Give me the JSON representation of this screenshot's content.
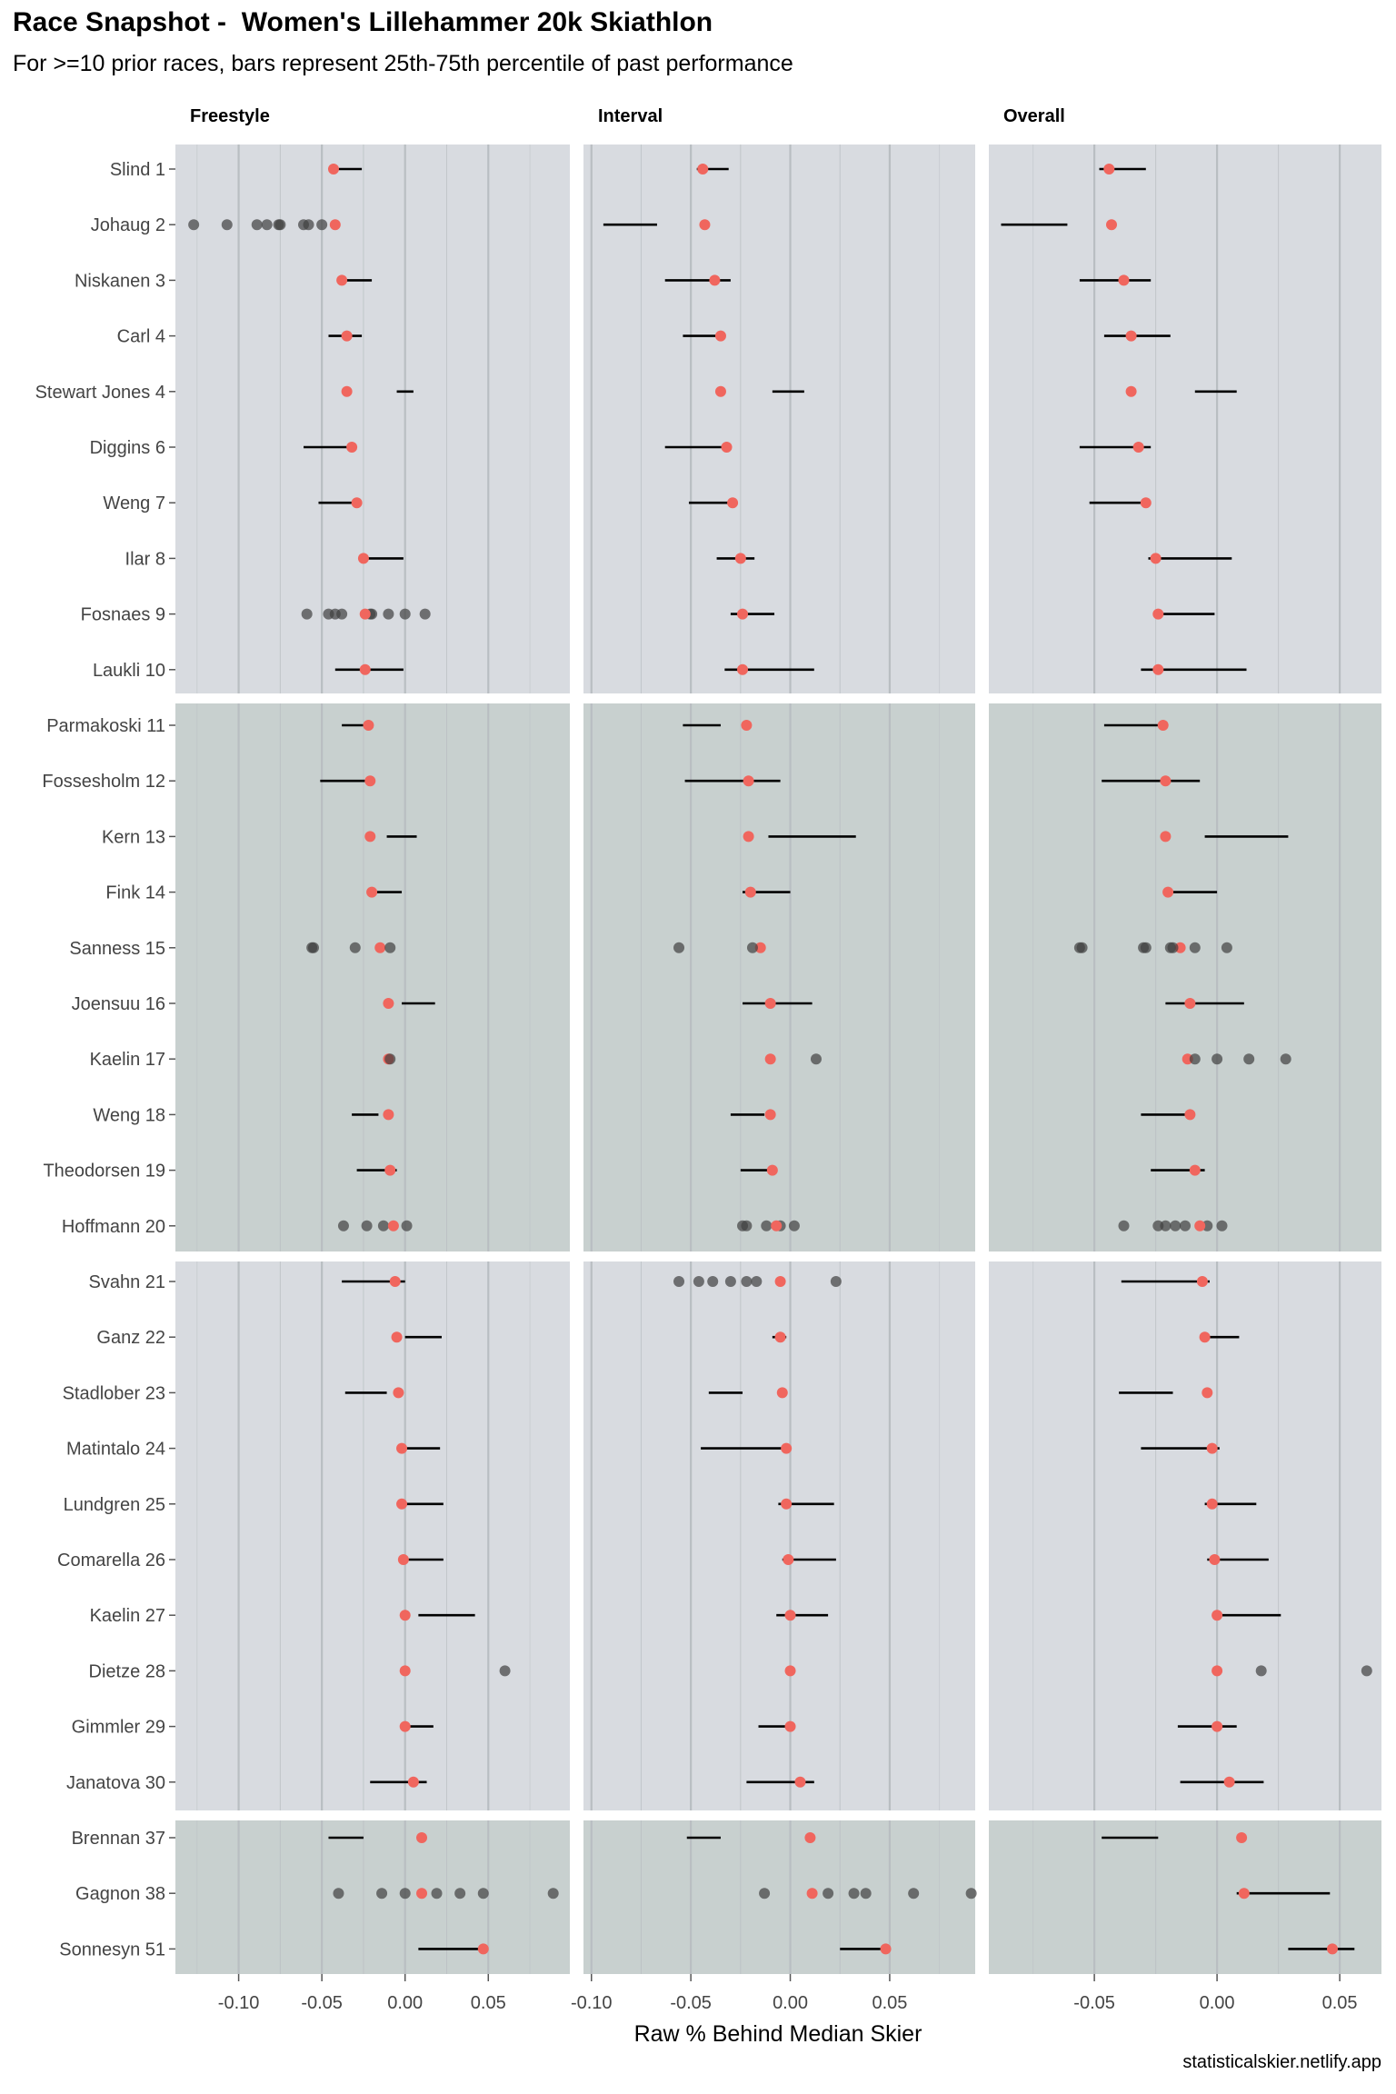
{
  "title": "Race Snapshot -  Women's Lillehammer 20k Skiathlon",
  "subtitle": "For >=10 prior races, bars represent 25th-75th percentile of past performance",
  "caption": "statisticalskier.netlify.app",
  "colors": {
    "panel_light": "#d8dbe0",
    "panel_dark": "#c8d0cf",
    "current_point": "#f0665e",
    "past_point": "#404040",
    "bar": "#000000",
    "grid": "#b9bec2"
  },
  "chart_data": {
    "type": "scatter",
    "xlabel": "Raw % Behind Median Skier",
    "facets": [
      {
        "name": "Freestyle",
        "xlim": [
          -0.138,
          0.099
        ],
        "ticks": [
          -0.1,
          -0.05,
          0.0,
          0.05
        ],
        "tick_labels": [
          "-0.10",
          "-0.05",
          "0.00",
          "0.05"
        ]
      },
      {
        "name": "Interval",
        "xlim": [
          -0.104,
          0.093
        ],
        "ticks": [
          -0.1,
          -0.05,
          0.0,
          0.05
        ],
        "tick_labels": [
          "-0.10",
          "-0.05",
          "0.00",
          "0.05"
        ]
      },
      {
        "name": "Overall",
        "xlim": [
          -0.093,
          0.067
        ],
        "ticks": [
          -0.05,
          0.0,
          0.05
        ],
        "tick_labels": [
          "-0.05",
          "0.00",
          "0.05"
        ]
      }
    ],
    "groups": [
      {
        "shade": "light",
        "rows": [
          0,
          9
        ]
      },
      {
        "shade": "dark",
        "rows": [
          10,
          19
        ]
      },
      {
        "shade": "light",
        "rows": [
          20,
          29
        ]
      },
      {
        "shade": "dark",
        "rows": [
          30,
          32
        ]
      }
    ],
    "skiers": [
      {
        "label": "Slind 1",
        "freestyle": {
          "current": -0.043,
          "bar": [
            -0.044,
            -0.026
          ],
          "past": []
        },
        "interval": {
          "current": -0.044,
          "bar": [
            -0.047,
            -0.031
          ],
          "past": []
        },
        "overall": {
          "current": -0.044,
          "bar": [
            -0.048,
            -0.029
          ],
          "past": []
        }
      },
      {
        "label": "Johaug 2",
        "freestyle": {
          "current": -0.042,
          "bar": null,
          "past": [
            -0.127,
            -0.107,
            -0.089,
            -0.083,
            -0.076,
            -0.075,
            -0.061,
            -0.058,
            -0.05
          ]
        },
        "interval": {
          "current": -0.043,
          "bar": [
            -0.094,
            -0.067
          ],
          "past": []
        },
        "overall": {
          "current": -0.043,
          "bar": [
            -0.088,
            -0.061
          ],
          "past": []
        }
      },
      {
        "label": "Niskanen 3",
        "freestyle": {
          "current": -0.038,
          "bar": [
            -0.04,
            -0.02
          ],
          "past": []
        },
        "interval": {
          "current": -0.038,
          "bar": [
            -0.063,
            -0.03
          ],
          "past": []
        },
        "overall": {
          "current": -0.038,
          "bar": [
            -0.056,
            -0.027
          ],
          "past": []
        }
      },
      {
        "label": "Carl 4",
        "freestyle": {
          "current": -0.035,
          "bar": [
            -0.046,
            -0.026
          ],
          "past": []
        },
        "interval": {
          "current": -0.035,
          "bar": [
            -0.054,
            -0.034
          ],
          "past": []
        },
        "overall": {
          "current": -0.035,
          "bar": [
            -0.046,
            -0.019
          ],
          "past": []
        }
      },
      {
        "label": "Stewart Jones 4",
        "freestyle": {
          "current": -0.035,
          "bar": [
            -0.005,
            0.005
          ],
          "past": []
        },
        "interval": {
          "current": -0.035,
          "bar": [
            -0.009,
            0.007
          ],
          "past": []
        },
        "overall": {
          "current": -0.035,
          "bar": [
            -0.009,
            0.008
          ],
          "past": []
        }
      },
      {
        "label": "Diggins 6",
        "freestyle": {
          "current": -0.032,
          "bar": [
            -0.061,
            -0.03
          ],
          "past": []
        },
        "interval": {
          "current": -0.032,
          "bar": [
            -0.063,
            -0.03
          ],
          "past": []
        },
        "overall": {
          "current": -0.032,
          "bar": [
            -0.056,
            -0.027
          ],
          "past": []
        }
      },
      {
        "label": "Weng 7",
        "freestyle": {
          "current": -0.029,
          "bar": [
            -0.052,
            -0.029
          ],
          "past": []
        },
        "interval": {
          "current": -0.029,
          "bar": [
            -0.051,
            -0.028
          ],
          "past": []
        },
        "overall": {
          "current": -0.029,
          "bar": [
            -0.052,
            -0.029
          ],
          "past": []
        }
      },
      {
        "label": "Ilar 8",
        "freestyle": {
          "current": -0.025,
          "bar": [
            -0.026,
            -0.001
          ],
          "past": []
        },
        "interval": {
          "current": -0.025,
          "bar": [
            -0.037,
            -0.018
          ],
          "past": []
        },
        "overall": {
          "current": -0.025,
          "bar": [
            -0.028,
            0.006
          ],
          "past": []
        }
      },
      {
        "label": "Fosnaes 9",
        "freestyle": {
          "current": -0.024,
          "bar": null,
          "past": [
            -0.059,
            -0.046,
            -0.042,
            -0.038,
            -0.021,
            -0.02,
            -0.01,
            0.0,
            0.012
          ]
        },
        "interval": {
          "current": -0.024,
          "bar": [
            -0.03,
            -0.008
          ],
          "past": []
        },
        "overall": {
          "current": -0.024,
          "bar": [
            -0.025,
            -0.001
          ],
          "past": []
        }
      },
      {
        "label": "Laukli 10",
        "freestyle": {
          "current": -0.024,
          "bar": [
            -0.042,
            -0.001
          ],
          "past": []
        },
        "interval": {
          "current": -0.024,
          "bar": [
            -0.033,
            0.012
          ],
          "past": []
        },
        "overall": {
          "current": -0.024,
          "bar": [
            -0.031,
            0.012
          ],
          "past": []
        }
      },
      {
        "label": "Parmakoski 11",
        "freestyle": {
          "current": -0.022,
          "bar": [
            -0.038,
            -0.024
          ],
          "past": []
        },
        "interval": {
          "current": -0.022,
          "bar": [
            -0.054,
            -0.035
          ],
          "past": []
        },
        "overall": {
          "current": -0.022,
          "bar": [
            -0.046,
            -0.024
          ],
          "past": []
        }
      },
      {
        "label": "Fossesholm 12",
        "freestyle": {
          "current": -0.021,
          "bar": [
            -0.051,
            -0.021
          ],
          "past": []
        },
        "interval": {
          "current": -0.021,
          "bar": [
            -0.053,
            -0.005
          ],
          "past": []
        },
        "overall": {
          "current": -0.021,
          "bar": [
            -0.047,
            -0.007
          ],
          "past": []
        }
      },
      {
        "label": "Kern 13",
        "freestyle": {
          "current": -0.021,
          "bar": [
            -0.011,
            0.007
          ],
          "past": []
        },
        "interval": {
          "current": -0.021,
          "bar": [
            -0.011,
            0.033
          ],
          "past": []
        },
        "overall": {
          "current": -0.021,
          "bar": [
            -0.005,
            0.029
          ],
          "past": []
        }
      },
      {
        "label": "Fink 14",
        "freestyle": {
          "current": -0.02,
          "bar": [
            -0.02,
            -0.002
          ],
          "past": []
        },
        "interval": {
          "current": -0.02,
          "bar": [
            -0.024,
            0.0
          ],
          "past": []
        },
        "overall": {
          "current": -0.02,
          "bar": [
            -0.02,
            0.0
          ],
          "past": []
        }
      },
      {
        "label": "Sanness 15",
        "freestyle": {
          "current": -0.015,
          "bar": null,
          "past": [
            -0.056,
            -0.055,
            -0.03,
            -0.009
          ]
        },
        "interval": {
          "current": -0.015,
          "bar": null,
          "past": [
            -0.056,
            -0.019
          ]
        },
        "overall": {
          "current": -0.015,
          "bar": null,
          "past": [
            -0.056,
            -0.055,
            -0.03,
            -0.029,
            -0.019,
            -0.018,
            -0.009,
            0.004
          ]
        },
        "current_on_top": false
      },
      {
        "label": "Joensuu 16",
        "freestyle": {
          "current": -0.01,
          "bar": [
            -0.002,
            0.018
          ],
          "past": []
        },
        "interval": {
          "current": -0.01,
          "bar": [
            -0.024,
            0.011
          ],
          "past": []
        },
        "overall": {
          "current": -0.011,
          "bar": [
            -0.021,
            0.011
          ],
          "past": []
        }
      },
      {
        "label": "Kaelin 17",
        "freestyle": {
          "current": -0.01,
          "bar": null,
          "past": [
            -0.009
          ]
        },
        "interval": {
          "current": -0.01,
          "bar": null,
          "past": [
            0.013
          ]
        },
        "overall": {
          "current": -0.012,
          "bar": null,
          "past": [
            -0.009,
            0.0,
            0.013,
            0.028
          ]
        },
        "current_on_top": false
      },
      {
        "label": "Weng 18",
        "freestyle": {
          "current": -0.01,
          "bar": [
            -0.032,
            -0.016
          ],
          "past": []
        },
        "interval": {
          "current": -0.01,
          "bar": [
            -0.03,
            -0.013
          ],
          "past": []
        },
        "overall": {
          "current": -0.011,
          "bar": [
            -0.031,
            -0.01
          ],
          "past": []
        }
      },
      {
        "label": "Theodorsen 19",
        "freestyle": {
          "current": -0.009,
          "bar": [
            -0.029,
            -0.005
          ],
          "past": []
        },
        "interval": {
          "current": -0.009,
          "bar": [
            -0.025,
            -0.01
          ],
          "past": []
        },
        "overall": {
          "current": -0.009,
          "bar": [
            -0.027,
            -0.005
          ],
          "past": []
        }
      },
      {
        "label": "Hoffmann 20",
        "freestyle": {
          "current": -0.007,
          "bar": null,
          "past": [
            -0.037,
            -0.023,
            -0.013,
            0.001
          ]
        },
        "interval": {
          "current": -0.007,
          "bar": null,
          "past": [
            -0.024,
            -0.022,
            -0.012,
            -0.005,
            0.002
          ]
        },
        "overall": {
          "current": -0.007,
          "bar": null,
          "past": [
            -0.038,
            -0.024,
            -0.021,
            -0.017,
            -0.013,
            -0.004,
            0.002
          ]
        }
      },
      {
        "label": "Svahn 21",
        "freestyle": {
          "current": -0.006,
          "bar": [
            -0.038,
            0.0
          ],
          "past": []
        },
        "interval": {
          "current": -0.005,
          "bar": null,
          "past": [
            -0.056,
            -0.046,
            -0.039,
            -0.03,
            -0.022,
            -0.017,
            0.023
          ]
        },
        "overall": {
          "current": -0.006,
          "bar": [
            -0.039,
            -0.003
          ],
          "past": []
        }
      },
      {
        "label": "Ganz 22",
        "freestyle": {
          "current": -0.005,
          "bar": [
            0.0,
            0.022
          ],
          "past": []
        },
        "interval": {
          "current": -0.005,
          "bar": [
            -0.009,
            -0.002
          ],
          "past": []
        },
        "overall": {
          "current": -0.005,
          "bar": [
            -0.005,
            0.009
          ],
          "past": []
        }
      },
      {
        "label": "Stadlober 23",
        "freestyle": {
          "current": -0.004,
          "bar": [
            -0.036,
            -0.011
          ],
          "past": []
        },
        "interval": {
          "current": -0.004,
          "bar": [
            -0.041,
            -0.024
          ],
          "past": []
        },
        "overall": {
          "current": -0.004,
          "bar": [
            -0.04,
            -0.018
          ],
          "past": []
        }
      },
      {
        "label": "Matintalo 24",
        "freestyle": {
          "current": -0.002,
          "bar": [
            -0.002,
            0.021
          ],
          "past": []
        },
        "interval": {
          "current": -0.002,
          "bar": [
            -0.045,
            -0.002
          ],
          "past": []
        },
        "overall": {
          "current": -0.002,
          "bar": [
            -0.031,
            0.001
          ],
          "past": []
        }
      },
      {
        "label": "Lundgren 25",
        "freestyle": {
          "current": -0.002,
          "bar": [
            -0.002,
            0.023
          ],
          "past": []
        },
        "interval": {
          "current": -0.002,
          "bar": [
            -0.006,
            0.022
          ],
          "past": []
        },
        "overall": {
          "current": -0.002,
          "bar": [
            -0.005,
            0.016
          ],
          "past": []
        }
      },
      {
        "label": "Comarella 26",
        "freestyle": {
          "current": -0.001,
          "bar": [
            -0.001,
            0.023
          ],
          "past": []
        },
        "interval": {
          "current": -0.001,
          "bar": [
            -0.004,
            0.023
          ],
          "past": []
        },
        "overall": {
          "current": -0.001,
          "bar": [
            -0.004,
            0.021
          ],
          "past": []
        }
      },
      {
        "label": "Kaelin 27",
        "freestyle": {
          "current": 0.0,
          "bar": [
            0.008,
            0.042
          ],
          "past": []
        },
        "interval": {
          "current": 0.0,
          "bar": [
            -0.007,
            0.019
          ],
          "past": []
        },
        "overall": {
          "current": 0.0,
          "bar": [
            0.0,
            0.026
          ],
          "past": []
        }
      },
      {
        "label": "Dietze 28",
        "freestyle": {
          "current": 0.0,
          "bar": null,
          "past": [
            0.06
          ]
        },
        "interval": {
          "current": 0.0,
          "bar": null,
          "past": []
        },
        "overall": {
          "current": 0.0,
          "bar": null,
          "past": [
            0.018,
            0.061
          ]
        }
      },
      {
        "label": "Gimmler 29",
        "freestyle": {
          "current": 0.0,
          "bar": [
            -0.002,
            0.017
          ],
          "past": []
        },
        "interval": {
          "current": 0.0,
          "bar": [
            -0.016,
            0.0
          ],
          "past": []
        },
        "overall": {
          "current": 0.0,
          "bar": [
            -0.016,
            0.008
          ],
          "past": []
        }
      },
      {
        "label": "Janatova 30",
        "freestyle": {
          "current": 0.005,
          "bar": [
            -0.021,
            0.013
          ],
          "past": []
        },
        "interval": {
          "current": 0.005,
          "bar": [
            -0.022,
            0.012
          ],
          "past": []
        },
        "overall": {
          "current": 0.005,
          "bar": [
            -0.015,
            0.019
          ],
          "past": []
        }
      },
      {
        "label": "Brennan 37",
        "freestyle": {
          "current": 0.01,
          "bar": [
            -0.046,
            -0.025
          ],
          "past": []
        },
        "interval": {
          "current": 0.01,
          "bar": [
            -0.052,
            -0.035
          ],
          "past": []
        },
        "overall": {
          "current": 0.01,
          "bar": [
            -0.047,
            -0.024
          ],
          "past": []
        }
      },
      {
        "label": "Gagnon 38",
        "freestyle": {
          "current": 0.01,
          "bar": null,
          "past": [
            -0.04,
            -0.014,
            0.0,
            0.019,
            0.033,
            0.047,
            0.089
          ]
        },
        "interval": {
          "current": 0.011,
          "bar": null,
          "past": [
            -0.013,
            0.019,
            0.032,
            0.038,
            0.062,
            0.091
          ]
        },
        "overall": {
          "current": 0.011,
          "bar": [
            0.008,
            0.046
          ],
          "past": []
        }
      },
      {
        "label": "Sonnesyn 51",
        "freestyle": {
          "current": 0.047,
          "bar": [
            0.008,
            0.049
          ],
          "past": []
        },
        "interval": {
          "current": 0.048,
          "bar": [
            0.025,
            0.046
          ],
          "past": []
        },
        "overall": {
          "current": 0.047,
          "bar": [
            0.029,
            0.056
          ],
          "past": []
        }
      }
    ]
  }
}
